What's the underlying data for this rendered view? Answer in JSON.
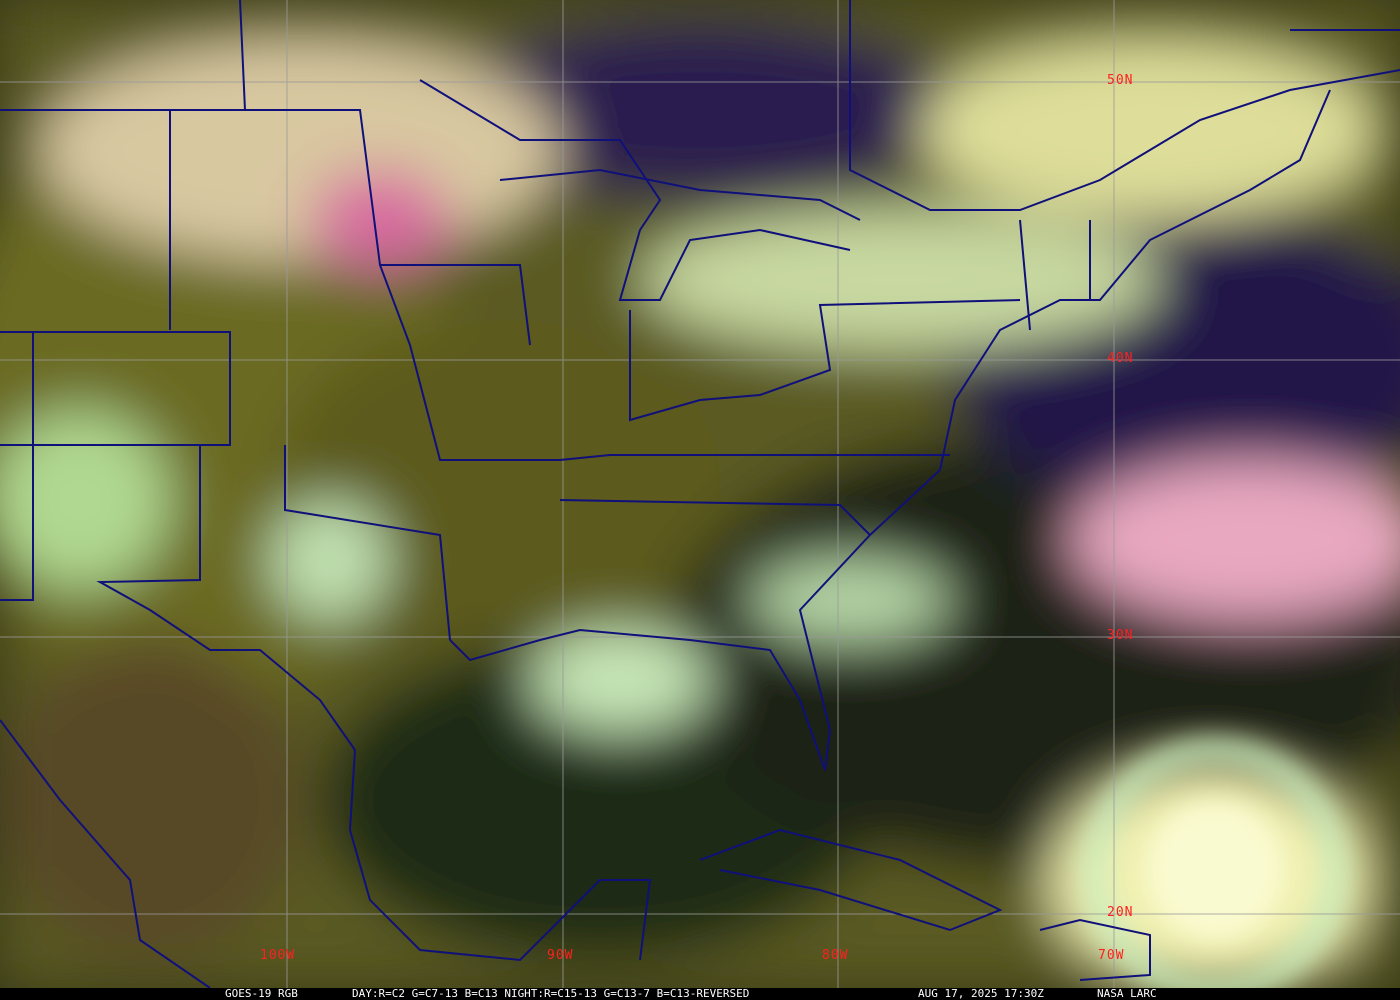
{
  "caption": {
    "product": "GOES-19 RGB",
    "recipe": "DAY:R=C2 G=C7-13 B=C13 NIGHT:R=C15-13 G=C13-7 B=C13-REVERSED",
    "timestamp": "AUG 17, 2025 17:30Z",
    "source": "NASA LARC"
  },
  "grid": {
    "latitudes": [
      "50N",
      "40N",
      "30N",
      "20N"
    ],
    "longitudes": [
      "100W",
      "90W",
      "80W",
      "70W"
    ],
    "label_color": "#ff2020",
    "grid_color": "#9a9a9a",
    "border_color": "#10107a"
  }
}
